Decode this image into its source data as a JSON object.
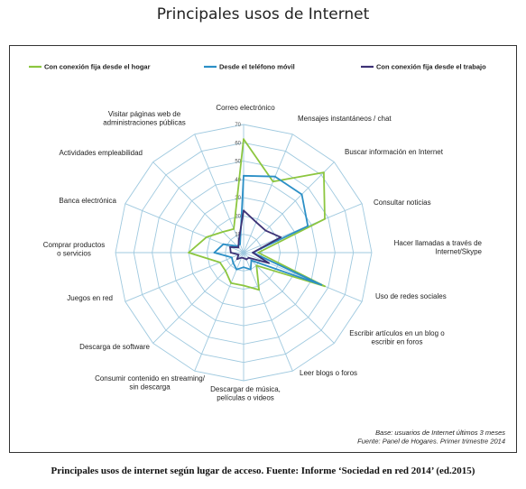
{
  "page": {
    "top_title": "Principales usos de Internet",
    "caption": "Principales usos de internet según lugar de acceso. Fuente: Informe ‘Sociedad en red 2014’ (ed.2015)"
  },
  "chart_data": {
    "type": "radar",
    "rmax": 70,
    "ticks": [
      10,
      20,
      30,
      40,
      50,
      60,
      70
    ],
    "tick_labels": [
      "10",
      "20",
      "30",
      "40",
      "50",
      "60",
      "70"
    ],
    "grid": true,
    "legend_position": "top",
    "colors": {
      "grid": "#9fc9df",
      "axis": "#9fc9df"
    },
    "categories": [
      "Correo electrónico",
      "Mensajes instantáneos / chat",
      "Buscar información en Internet",
      "Consultar noticias",
      "Hacer llamadas a través de Internet/Skype",
      "Uso de redes sociales",
      "Escribir artículos en un blog o escribir en foros",
      "Leer blogs o foros",
      "Descargar de música, películas o videos",
      "Consumir contenido en streaming/ sin descarga",
      "Descarga de software",
      "Juegos en red",
      "Comprar productos o servicios",
      "Banca electrónica",
      "Actividades empleabilidad",
      "Visitar páginas web de administraciones públicas"
    ],
    "series": [
      {
        "name": "Con conexión fija desde el hogar",
        "color": "#8cc63f",
        "values": [
          62,
          42,
          62,
          48,
          8,
          48,
          10,
          22,
          18,
          18,
          14,
          14,
          30,
          22,
          16,
          14
        ]
      },
      {
        "name": "Desde el teléfono móvil",
        "color": "#2b8fc6",
        "values": [
          42,
          45,
          45,
          38,
          5,
          46,
          6,
          10,
          8,
          10,
          8,
          7,
          16,
          12,
          5,
          5
        ]
      },
      {
        "name": "Con conexión fija desde el trabajo",
        "color": "#3d3275",
        "values": [
          23,
          18,
          17,
          22,
          5,
          15,
          4,
          4,
          3,
          3,
          5,
          3,
          7,
          8,
          4,
          7
        ]
      }
    ],
    "notes": [
      "Base: usuarios de Internet últimos 3 meses",
      "Fuente: Panel de Hogares. Primer trimestre 2014"
    ]
  }
}
